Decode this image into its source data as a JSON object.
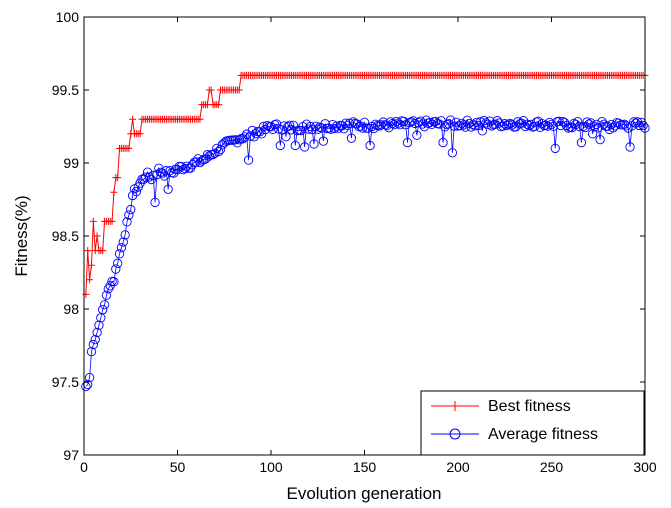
{
  "chart_data": {
    "type": "line",
    "title": "",
    "xlabel": "Evolution generation",
    "ylabel": "Fitness(%)",
    "xlim": [
      0,
      300
    ],
    "ylim": [
      97,
      100
    ],
    "xticks": [
      "0",
      "50",
      "100",
      "150",
      "200",
      "250",
      "300"
    ],
    "yticks": [
      "97",
      "97.5",
      "98",
      "98.5",
      "99",
      "99.5",
      "100"
    ],
    "grid": false,
    "legend_position": "bottom-right",
    "series": [
      {
        "name": "Best fitness",
        "color": "#ff0000",
        "marker": "plus",
        "steps": [
          {
            "from": 1,
            "to": 1,
            "y": 98.1
          },
          {
            "from": 2,
            "to": 2,
            "y": 98.4
          },
          {
            "from": 3,
            "to": 3,
            "y": 98.2
          },
          {
            "from": 4,
            "to": 4,
            "y": 98.3
          },
          {
            "from": 5,
            "to": 5,
            "y": 98.6
          },
          {
            "from": 6,
            "to": 6,
            "y": 98.4
          },
          {
            "from": 7,
            "to": 7,
            "y": 98.5
          },
          {
            "from": 8,
            "to": 10,
            "y": 98.4
          },
          {
            "from": 11,
            "to": 15,
            "y": 98.6
          },
          {
            "from": 16,
            "to": 16,
            "y": 98.8
          },
          {
            "from": 17,
            "to": 18,
            "y": 98.9
          },
          {
            "from": 19,
            "to": 24,
            "y": 99.1
          },
          {
            "from": 25,
            "to": 25,
            "y": 99.2
          },
          {
            "from": 26,
            "to": 26,
            "y": 99.3
          },
          {
            "from": 27,
            "to": 30,
            "y": 99.2
          },
          {
            "from": 31,
            "to": 62,
            "y": 99.3
          },
          {
            "from": 63,
            "to": 66,
            "y": 99.4
          },
          {
            "from": 67,
            "to": 68,
            "y": 99.5
          },
          {
            "from": 69,
            "to": 72,
            "y": 99.4
          },
          {
            "from": 73,
            "to": 83,
            "y": 99.5
          },
          {
            "from": 84,
            "to": 300,
            "y": 99.6
          }
        ]
      },
      {
        "name": "Average fitness",
        "color": "#0000ff",
        "marker": "circle",
        "anchors": [
          [
            1,
            97.47
          ],
          [
            2,
            97.48
          ],
          [
            3,
            97.55
          ],
          [
            4,
            97.72
          ],
          [
            5,
            97.76
          ],
          [
            6,
            97.79
          ],
          [
            7,
            97.86
          ],
          [
            8,
            97.87
          ],
          [
            10,
            98.0
          ],
          [
            12,
            98.08
          ],
          [
            14,
            98.18
          ],
          [
            16,
            98.2
          ],
          [
            18,
            98.33
          ],
          [
            20,
            98.42
          ],
          [
            22,
            98.53
          ],
          [
            24,
            98.62
          ],
          [
            26,
            98.78
          ],
          [
            28,
            98.82
          ],
          [
            30,
            98.86
          ],
          [
            33,
            98.92
          ],
          [
            36,
            98.9
          ],
          [
            40,
            98.95
          ],
          [
            45,
            98.92
          ],
          [
            50,
            98.96
          ],
          [
            55,
            98.98
          ],
          [
            60,
            99.0
          ],
          [
            65,
            99.03
          ],
          [
            70,
            99.08
          ],
          [
            75,
            99.12
          ],
          [
            80,
            99.15
          ],
          [
            85,
            99.18
          ],
          [
            90,
            99.2
          ],
          [
            95,
            99.22
          ],
          [
            100,
            99.25
          ],
          [
            110,
            99.24
          ],
          [
            120,
            99.25
          ],
          [
            140,
            99.26
          ],
          [
            160,
            99.26
          ],
          [
            180,
            99.27
          ],
          [
            200,
            99.27
          ],
          [
            220,
            99.27
          ],
          [
            240,
            99.27
          ],
          [
            260,
            99.26
          ],
          [
            280,
            99.26
          ],
          [
            300,
            99.26
          ]
        ],
        "dips": [
          [
            38,
            98.73
          ],
          [
            45,
            98.82
          ],
          [
            88,
            99.02
          ],
          [
            105,
            99.12
          ],
          [
            108,
            99.18
          ],
          [
            113,
            99.12
          ],
          [
            118,
            99.11
          ],
          [
            123,
            99.13
          ],
          [
            128,
            99.15
          ],
          [
            143,
            99.17
          ],
          [
            153,
            99.12
          ],
          [
            173,
            99.14
          ],
          [
            178,
            99.19
          ],
          [
            192,
            99.14
          ],
          [
            197,
            99.07
          ],
          [
            213,
            99.22
          ],
          [
            252,
            99.1
          ],
          [
            266,
            99.14
          ],
          [
            272,
            99.2
          ],
          [
            276,
            99.16
          ],
          [
            281,
            99.23
          ],
          [
            292,
            99.11
          ]
        ]
      }
    ]
  }
}
